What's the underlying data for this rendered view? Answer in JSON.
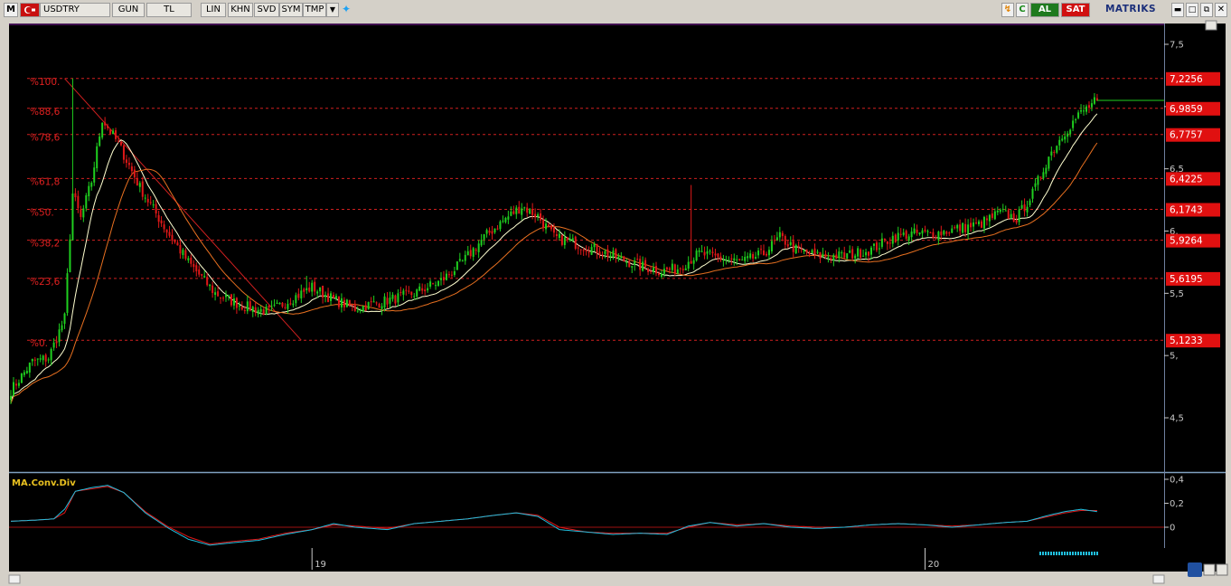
{
  "toolbar": {
    "m_icon": "M",
    "symbol": "USDTRY",
    "period": "GUN",
    "currency": "TL",
    "scale": "LIN",
    "btn_khn": "KHN",
    "btn_svd": "SVD",
    "btn_sym": "SYM",
    "btn_tmp": "TMP",
    "buy": "AL",
    "sell": "SAT",
    "brand": "MATRIKS"
  },
  "colors": {
    "background": "#000000",
    "up": "#1fcf1f",
    "down": "#e01818",
    "fib": "#d02020",
    "ma_short": "#ffffd0",
    "ma_long": "#e87020",
    "macd": "#20c0e0",
    "signal": "#e01818",
    "axis_text": "#c8c8c8"
  },
  "chart_data": [
    {
      "type": "candlestick",
      "symbol": "USDTRY",
      "ylim": [
        4.25,
        7.75
      ],
      "yticks": [
        "7,5",
        "7,",
        "6,5",
        "6,",
        "5,5",
        "5,",
        "4,5"
      ],
      "ytick_values": [
        7.5,
        7.0,
        6.5,
        6.0,
        5.5,
        5.0,
        4.5
      ],
      "xticks": [
        {
          "label": "19",
          "index": 112
        },
        {
          "label": "20",
          "index": 340
        }
      ],
      "fibonacci": [
        {
          "label": "%100.",
          "value": 7.2256
        },
        {
          "label": "%88,6",
          "value": 6.9859
        },
        {
          "label": "%78,6",
          "value": 6.7757
        },
        {
          "label": "%61,8",
          "value": 6.4225
        },
        {
          "label": "%50.",
          "value": 6.1743
        },
        {
          "label": "%38,2",
          "value": 5.9264
        },
        {
          "label": "%23,6",
          "value": 5.6195
        },
        {
          "label": "%0.",
          "value": 5.1233
        }
      ],
      "price_tags": [
        "7,2256",
        "6,9859",
        "6,7757",
        "6,4225",
        "6,1743",
        "5,9264",
        "5,6195",
        "5,1233"
      ],
      "last_close": 7.05,
      "close_anchors": [
        [
          0,
          4.72
        ],
        [
          8,
          4.95
        ],
        [
          14,
          4.98
        ],
        [
          20,
          5.3
        ],
        [
          23,
          6.3
        ],
        [
          26,
          6.1
        ],
        [
          30,
          6.4
        ],
        [
          34,
          6.9
        ],
        [
          40,
          6.7
        ],
        [
          48,
          6.35
        ],
        [
          58,
          6.0
        ],
        [
          66,
          5.75
        ],
        [
          76,
          5.5
        ],
        [
          86,
          5.4
        ],
        [
          96,
          5.35
        ],
        [
          104,
          5.45
        ],
        [
          112,
          5.55
        ],
        [
          120,
          5.45
        ],
        [
          128,
          5.38
        ],
        [
          136,
          5.42
        ],
        [
          150,
          5.5
        ],
        [
          160,
          5.6
        ],
        [
          168,
          5.75
        ],
        [
          176,
          5.95
        ],
        [
          184,
          6.1
        ],
        [
          190,
          6.2
        ],
        [
          196,
          6.12
        ],
        [
          202,
          5.95
        ],
        [
          210,
          5.9
        ],
        [
          218,
          5.85
        ],
        [
          226,
          5.78
        ],
        [
          234,
          5.72
        ],
        [
          242,
          5.68
        ],
        [
          248,
          5.7
        ],
        [
          256,
          5.82
        ],
        [
          264,
          5.78
        ],
        [
          272,
          5.75
        ],
        [
          280,
          5.82
        ],
        [
          286,
          5.95
        ],
        [
          292,
          5.85
        ],
        [
          300,
          5.8
        ],
        [
          310,
          5.8
        ],
        [
          320,
          5.85
        ],
        [
          328,
          5.95
        ],
        [
          336,
          5.98
        ],
        [
          344,
          5.98
        ],
        [
          352,
          6.02
        ],
        [
          360,
          6.05
        ],
        [
          368,
          6.15
        ],
        [
          374,
          6.1
        ],
        [
          380,
          6.3
        ],
        [
          386,
          6.6
        ],
        [
          392,
          6.8
        ],
        [
          398,
          6.95
        ],
        [
          404,
          7.05
        ]
      ]
    },
    {
      "type": "line",
      "title": "MA.Conv.Div",
      "ylim": [
        -0.16,
        0.44
      ],
      "yticks": [
        "0,4",
        "0,2",
        "0"
      ],
      "ytick_values": [
        0.4,
        0.2,
        0.0
      ],
      "series": [
        {
          "role": "macd",
          "anchors": [
            [
              0,
              0.05
            ],
            [
              10,
              0.06
            ],
            [
              16,
              0.07
            ],
            [
              20,
              0.15
            ],
            [
              24,
              0.3
            ],
            [
              30,
              0.33
            ],
            [
              36,
              0.35
            ],
            [
              42,
              0.29
            ],
            [
              50,
              0.12
            ],
            [
              58,
              0.0
            ],
            [
              66,
              -0.1
            ],
            [
              74,
              -0.15
            ],
            [
              82,
              -0.13
            ],
            [
              92,
              -0.11
            ],
            [
              102,
              -0.06
            ],
            [
              112,
              -0.02
            ],
            [
              120,
              0.03
            ],
            [
              128,
              0.0
            ],
            [
              140,
              -0.02
            ],
            [
              150,
              0.03
            ],
            [
              160,
              0.05
            ],
            [
              170,
              0.07
            ],
            [
              180,
              0.1
            ],
            [
              188,
              0.12
            ],
            [
              196,
              0.09
            ],
            [
              204,
              -0.02
            ],
            [
              214,
              -0.04
            ],
            [
              224,
              -0.06
            ],
            [
              234,
              -0.05
            ],
            [
              244,
              -0.06
            ],
            [
              252,
              0.01
            ],
            [
              260,
              0.04
            ],
            [
              270,
              0.01
            ],
            [
              280,
              0.03
            ],
            [
              290,
              0.0
            ],
            [
              300,
              -0.01
            ],
            [
              310,
              0.0
            ],
            [
              320,
              0.02
            ],
            [
              330,
              0.03
            ],
            [
              340,
              0.02
            ],
            [
              350,
              0.0
            ],
            [
              360,
              0.02
            ],
            [
              370,
              0.04
            ],
            [
              378,
              0.05
            ],
            [
              386,
              0.1
            ],
            [
              392,
              0.13
            ],
            [
              398,
              0.15
            ],
            [
              404,
              0.13
            ]
          ]
        },
        {
          "role": "signal",
          "anchors": [
            [
              0,
              0.05
            ],
            [
              10,
              0.06
            ],
            [
              16,
              0.07
            ],
            [
              20,
              0.12
            ],
            [
              24,
              0.3
            ],
            [
              30,
              0.32
            ],
            [
              36,
              0.34
            ],
            [
              42,
              0.29
            ],
            [
              50,
              0.13
            ],
            [
              58,
              0.01
            ],
            [
              66,
              -0.08
            ],
            [
              74,
              -0.14
            ],
            [
              82,
              -0.12
            ],
            [
              92,
              -0.1
            ],
            [
              102,
              -0.05
            ],
            [
              112,
              -0.02
            ],
            [
              120,
              0.02
            ],
            [
              128,
              0.01
            ],
            [
              140,
              -0.01
            ],
            [
              150,
              0.03
            ],
            [
              160,
              0.05
            ],
            [
              170,
              0.07
            ],
            [
              180,
              0.1
            ],
            [
              188,
              0.12
            ],
            [
              196,
              0.1
            ],
            [
              204,
              0.0
            ],
            [
              214,
              -0.04
            ],
            [
              224,
              -0.05
            ],
            [
              234,
              -0.05
            ],
            [
              244,
              -0.05
            ],
            [
              252,
              0.0
            ],
            [
              260,
              0.04
            ],
            [
              270,
              0.02
            ],
            [
              280,
              0.03
            ],
            [
              290,
              0.01
            ],
            [
              300,
              0.0
            ],
            [
              310,
              0.0
            ],
            [
              320,
              0.02
            ],
            [
              330,
              0.03
            ],
            [
              340,
              0.02
            ],
            [
              350,
              0.01
            ],
            [
              360,
              0.02
            ],
            [
              370,
              0.04
            ],
            [
              378,
              0.05
            ],
            [
              386,
              0.09
            ],
            [
              392,
              0.12
            ],
            [
              398,
              0.14
            ],
            [
              404,
              0.14
            ]
          ]
        }
      ]
    }
  ]
}
